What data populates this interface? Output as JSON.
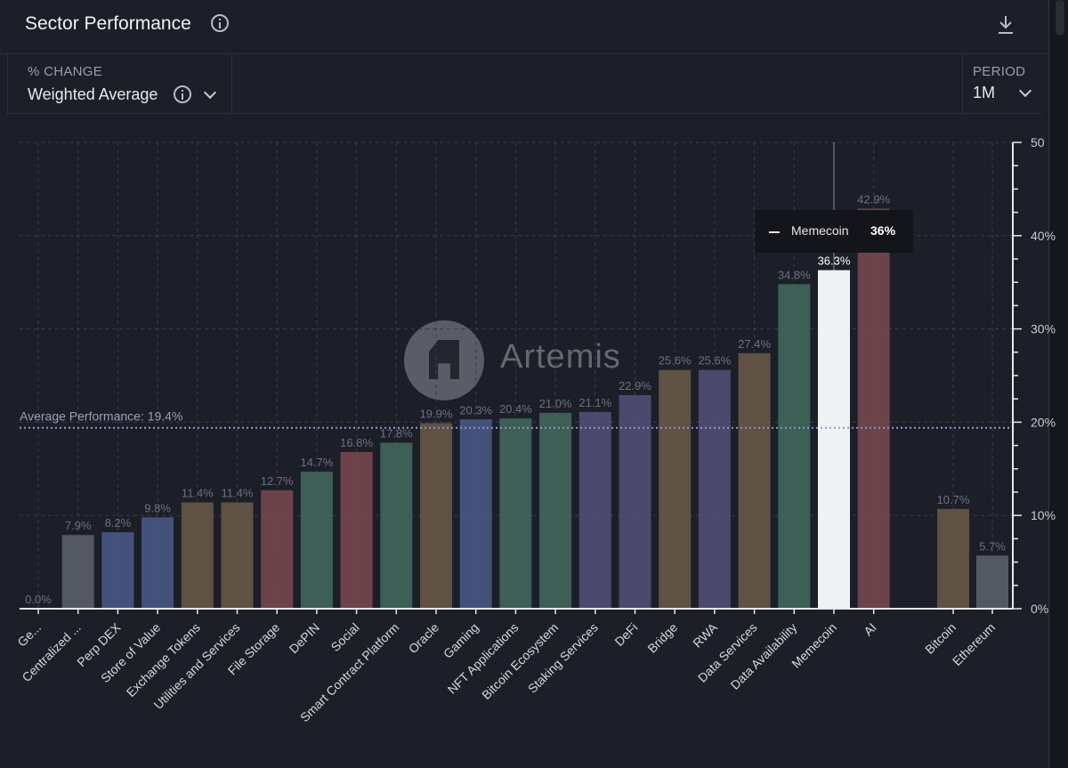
{
  "header": {
    "title": "Sector Performance",
    "info_icon": "info-icon",
    "download_icon": "download-icon"
  },
  "controls": {
    "change_label": "% CHANGE",
    "change_value": "Weighted Average",
    "period_label": "PERIOD",
    "period_value": "1M"
  },
  "tooltip": {
    "name": "Memecoin",
    "value": "36%"
  },
  "watermark": {
    "text": "Artemis"
  },
  "chart_data": {
    "type": "bar",
    "categories": [
      "Ge...",
      "Centralized ...",
      "Perp DEX",
      "Store of Value",
      "Exchange Tokens",
      "Utilities and Services",
      "File Storage",
      "DePIN",
      "Social",
      "Smart Contract Platform",
      "Oracle",
      "Gaming",
      "NFT Applications",
      "Bitcoin Ecosystem",
      "Staking Services",
      "DeFi",
      "Bridge",
      "RWA",
      "Data Services",
      "Data Availability",
      "Memecoin",
      "AI",
      "Bitcoin",
      "Ethereum"
    ],
    "values": [
      0.0,
      7.9,
      8.2,
      9.8,
      11.4,
      11.4,
      12.7,
      14.7,
      16.8,
      17.8,
      19.9,
      20.3,
      20.4,
      21.0,
      21.1,
      22.9,
      25.6,
      25.6,
      27.4,
      34.8,
      36.3,
      42.9,
      10.7,
      5.7
    ],
    "value_labels": [
      "0.0%",
      "7.9%",
      "8.2%",
      "9.8%",
      "11.4%",
      "11.4%",
      "12.7%",
      "14.7%",
      "16.8%",
      "17.8%",
      "19.9%",
      "20.3%",
      "20.4%",
      "21.0%",
      "21.1%",
      "22.9%",
      "25.6%",
      "25.6%",
      "27.4%",
      "34.8%",
      "36.3%",
      "42.9%",
      "10.7%",
      "5.7%"
    ],
    "colors": [
      "#5d636d",
      "#5d636d",
      "#4a5b8a",
      "#4a5b8a",
      "#6b5b48",
      "#6b5b48",
      "#7a4a50",
      "#436b5e",
      "#7a4a50",
      "#436b5e",
      "#6b5b48",
      "#4a5b8a",
      "#436b5e",
      "#436b5e",
      "#55507a",
      "#55507a",
      "#6b5b48",
      "#55507a",
      "#6b5b48",
      "#436b5e",
      "#f0f1f3",
      "#7a4a50",
      "#6b5b48",
      "#5d636d"
    ],
    "highlight": "Memecoin",
    "ylim": [
      0,
      50
    ],
    "yticks": [
      0,
      10,
      20,
      30,
      40,
      50
    ],
    "ytick_labels": [
      "0%",
      "10%",
      "20%",
      "30%",
      "40%",
      "50"
    ],
    "average": {
      "value": 19.4,
      "label": "Average Performance: 19.4%"
    },
    "title": "Sector Performance",
    "xlabel": "",
    "ylabel": ""
  }
}
